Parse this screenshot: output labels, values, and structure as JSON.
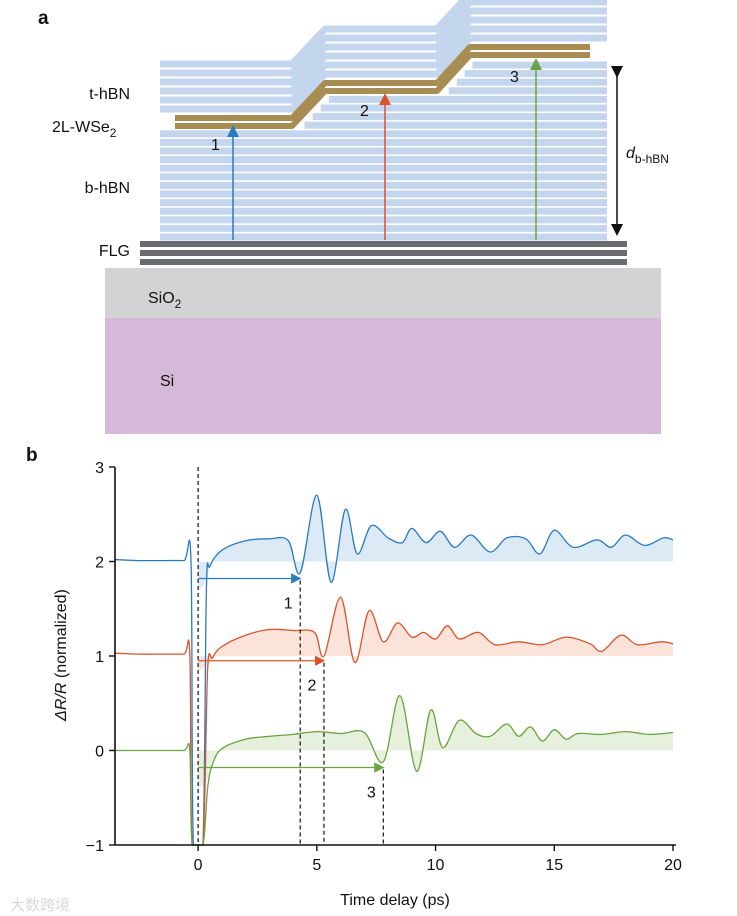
{
  "panel_a": {
    "label": "a",
    "layers": {
      "t_hbn": "t-hBN",
      "wse2": "2L-WSe",
      "wse2_sub": "2",
      "b_hbn": "b-hBN",
      "flg": "FLG",
      "sio2": "SiO",
      "sio2_sub": "2",
      "si": "Si"
    },
    "arrow_labels": [
      "1",
      "2",
      "3"
    ],
    "thickness_label": "d",
    "thickness_sub": "b-hBN",
    "colors": {
      "hbn": "#c3d6ee",
      "wse2": "#a88d52",
      "flg": "#6a6b70",
      "sio2": "#d3d3d5",
      "si": "#d5b9d8"
    }
  },
  "panel_b": {
    "label": "b"
  },
  "watermark": "大数跨境",
  "chart_data": {
    "type": "line",
    "title": "",
    "xlabel": "Time delay (ps)",
    "ylabel_prefix": "ΔR/R",
    "ylabel_suffix": " (normalized)",
    "xlim": [
      -3.5,
      20
    ],
    "ylim": [
      -1,
      3
    ],
    "xticks": [
      0,
      5,
      10,
      15,
      20
    ],
    "yticks": [
      -1,
      0,
      1,
      2,
      3
    ],
    "xtick_labels": [
      "0",
      "5",
      "10",
      "15",
      "20"
    ],
    "ytick_labels": [
      "−1",
      "0",
      "1",
      "2",
      "3"
    ],
    "zero_line_x": 0,
    "series": [
      {
        "name": "1",
        "color": "#2b7bbf",
        "fill": "#dceaf6",
        "offset": 2,
        "x": [
          -3.5,
          -2.5,
          -1.5,
          -0.6,
          -0.3,
          -0.2,
          0.2,
          0.35,
          0.5,
          1,
          2,
          3,
          3.8,
          4.3,
          5,
          5.6,
          6.2,
          6.7,
          7.3,
          8,
          8.6,
          9,
          9.6,
          10.2,
          10.8,
          11.5,
          12.3,
          13,
          13.8,
          14.4,
          15,
          15.8,
          16.8,
          17.4,
          18,
          18.8,
          19.6,
          20
        ],
        "y": [
          2.02,
          2.01,
          2.01,
          2.01,
          2.0,
          -1.2,
          -1.2,
          1.7,
          1.95,
          2.12,
          2.22,
          2.24,
          2.22,
          1.88,
          2.7,
          1.78,
          2.55,
          2.08,
          2.38,
          2.25,
          2.2,
          2.35,
          2.2,
          2.32,
          2.15,
          2.28,
          2.1,
          2.25,
          2.24,
          2.08,
          2.33,
          2.15,
          2.23,
          2.15,
          2.28,
          2.17,
          2.25,
          2.23
        ],
        "marker": {
          "x": 4.3,
          "y": 1.82,
          "label": "1"
        }
      },
      {
        "name": "2",
        "color": "#d9542c",
        "fill": "#fbe3da",
        "offset": 1,
        "x": [
          -3.5,
          -2.5,
          -1.5,
          -0.6,
          -0.35,
          -0.25,
          0.2,
          0.4,
          0.6,
          1,
          2,
          3,
          4,
          4.9,
          5.3,
          6,
          6.6,
          7.2,
          7.8,
          8.4,
          9,
          9.5,
          10,
          10.5,
          11,
          11.8,
          12.5,
          13.5,
          14.5,
          15.5,
          16.5,
          17,
          17.8,
          18.5,
          19.5,
          20
        ],
        "y": [
          1.03,
          1.02,
          1.02,
          1.02,
          1.02,
          -1.2,
          -1.2,
          0.85,
          0.98,
          1.1,
          1.22,
          1.28,
          1.27,
          1.25,
          1.0,
          1.62,
          0.93,
          1.48,
          1.15,
          1.35,
          1.2,
          1.25,
          1.18,
          1.32,
          1.18,
          1.25,
          1.12,
          1.15,
          1.12,
          1.2,
          1.13,
          1.05,
          1.22,
          1.12,
          1.15,
          1.13
        ],
        "marker": {
          "x": 5.3,
          "y": 0.95,
          "label": "2"
        }
      },
      {
        "name": "3",
        "color": "#6aa440",
        "fill": "#e6f0dc",
        "offset": 0,
        "x": [
          -3.5,
          -2.5,
          -1.5,
          -0.6,
          -0.35,
          -0.25,
          0.2,
          0.4,
          0.6,
          1,
          2,
          3,
          4,
          5,
          6,
          7,
          7.8,
          8.5,
          9.2,
          9.8,
          10.3,
          11,
          11.7,
          12.3,
          13,
          13.5,
          14,
          14.5,
          15,
          15.5,
          16,
          17,
          18,
          19,
          20
        ],
        "y": [
          0.0,
          0.0,
          0.0,
          0.0,
          0.0,
          -1.2,
          -1.2,
          -0.4,
          -0.15,
          0.02,
          0.12,
          0.15,
          0.17,
          0.2,
          0.18,
          0.19,
          -0.12,
          0.58,
          -0.22,
          0.43,
          0.03,
          0.32,
          0.18,
          0.15,
          0.28,
          0.15,
          0.25,
          0.1,
          0.22,
          0.12,
          0.18,
          0.17,
          0.2,
          0.17,
          0.19
        ],
        "marker": {
          "x": 7.8,
          "y": -0.18,
          "label": "3"
        }
      }
    ]
  }
}
